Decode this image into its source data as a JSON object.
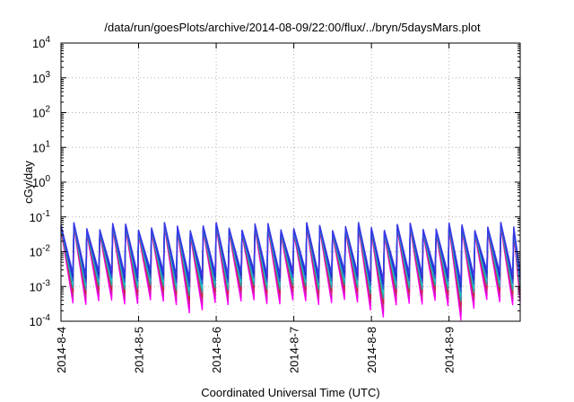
{
  "chart_data": {
    "type": "line",
    "title": "/data/run/goesPlots/archive/2014-08-09/22:00/flux/../bryn/5daysMars.plot",
    "xlabel": "Coordinated Universal Time (UTC)",
    "ylabel": "cGy/day",
    "yscale": "log",
    "ylim": [
      0.0001,
      10000
    ],
    "xlim": [
      "2014-08-04 00:00",
      "2014-08-09 22:00"
    ],
    "grid": true,
    "x_ticks": [
      "2014-8-4",
      "2014-8-5",
      "2014-8-6",
      "2014-8-7",
      "2014-8-8",
      "2014-8-9"
    ],
    "y_ticks": [
      {
        "base": "10",
        "exp": "-4"
      },
      {
        "base": "10",
        "exp": "-3"
      },
      {
        "base": "10",
        "exp": "-2"
      },
      {
        "base": "10",
        "exp": "-1"
      },
      {
        "base": "10",
        "exp": "0"
      },
      {
        "base": "10",
        "exp": "1"
      },
      {
        "base": "10",
        "exp": "2"
      },
      {
        "base": "10",
        "exp": "3"
      },
      {
        "base": "10",
        "exp": "4"
      }
    ],
    "series_colors": [
      "#ff00ff",
      "#e800d8",
      "#cc2a8a",
      "#c8263a",
      "#2aa0a0",
      "#19c8c8",
      "#2e5bd8",
      "#1f2fc8",
      "#3a3ae8"
    ],
    "pattern": {
      "period_hours": 4,
      "peak_range": [
        0.03,
        0.07
      ],
      "trough_range": [
        0.0003,
        0.003
      ],
      "dip_times": [
        "2014-08-05 14:00",
        "2014-08-08 00:00",
        "2014-08-09 00:00"
      ]
    }
  }
}
